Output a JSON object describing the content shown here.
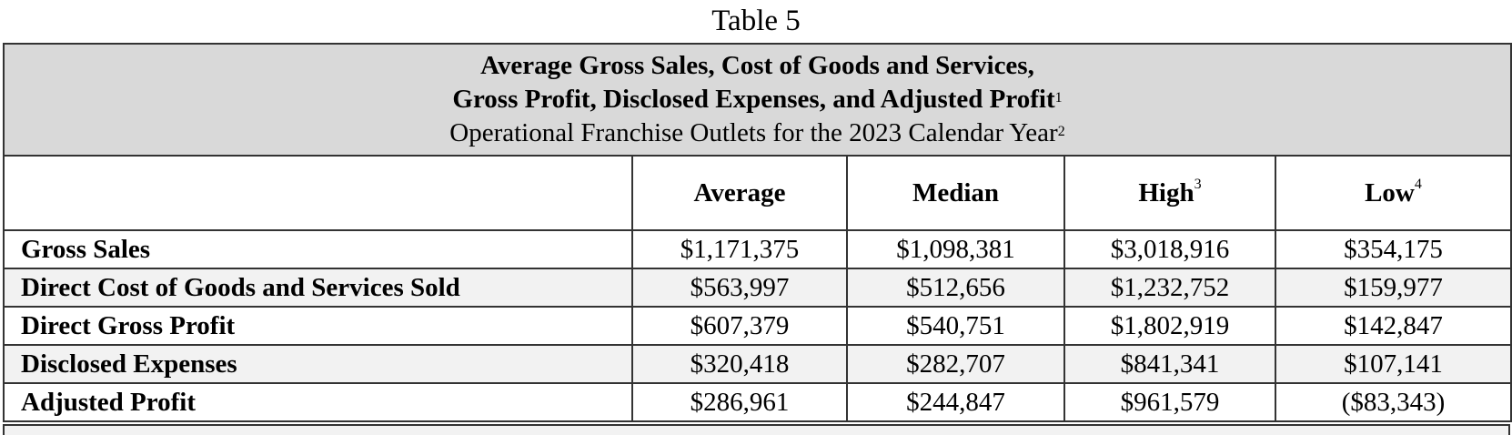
{
  "caption": "Table 5",
  "header": {
    "title_line1": "Average Gross Sales, Cost of Goods and Services,",
    "title_line2": "Gross Profit, Disclosed Expenses, and Adjusted Profit",
    "title_line2_note": "1",
    "subtitle": "Operational Franchise Outlets for the 2023 Calendar Year",
    "subtitle_note": "2"
  },
  "columns": [
    {
      "label": "Average",
      "note": ""
    },
    {
      "label": "Median",
      "note": ""
    },
    {
      "label": "High",
      "note": "3"
    },
    {
      "label": "Low",
      "note": "4"
    }
  ],
  "rows": [
    {
      "label": "Gross Sales",
      "values": [
        "$1,171,375",
        "$1,098,381",
        "$3,018,916",
        "$354,175"
      ]
    },
    {
      "label": "Direct Cost of Goods and Services Sold",
      "values": [
        "$563,997",
        "$512,656",
        "$1,232,752",
        "$159,977"
      ]
    },
    {
      "label": "Direct Gross Profit",
      "values": [
        "$607,379",
        "$540,751",
        "$1,802,919",
        "$142,847"
      ]
    },
    {
      "label": "Disclosed Expenses",
      "values": [
        "$320,418",
        "$282,707",
        "$841,341",
        "$107,141"
      ]
    },
    {
      "label": "Adjusted Profit",
      "values": [
        "$286,961",
        "$244,847",
        "$961,579",
        "($83,343)"
      ]
    }
  ],
  "colors": {
    "header_bg": "#d9d9d9",
    "alt_row_bg": "#f2f2f2",
    "border": "#333333"
  }
}
